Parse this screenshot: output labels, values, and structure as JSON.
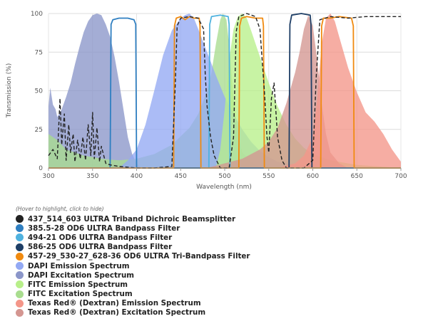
{
  "chart_data": {
    "type": "area",
    "xlabel": "Wavelength (nm)",
    "ylabel": "Transmission (%)",
    "xlim": [
      300,
      700
    ],
    "ylim": [
      0,
      100
    ],
    "x_ticks": [
      300,
      350,
      400,
      450,
      500,
      550,
      600,
      650,
      700
    ],
    "y_ticks": [
      0,
      25,
      50,
      75,
      100
    ],
    "grid": true,
    "legend_position": "bottom",
    "legend_hint": "(Hover to highlight, click to hide)",
    "series": [
      {
        "name": "DAPI Excitation Spectrum",
        "kind": "fill",
        "color": "#8b96c9",
        "points": [
          [
            300,
            40
          ],
          [
            302,
            52
          ],
          [
            305,
            41
          ],
          [
            308,
            38
          ],
          [
            310,
            33
          ],
          [
            315,
            38
          ],
          [
            320,
            46
          ],
          [
            325,
            55
          ],
          [
            330,
            67
          ],
          [
            335,
            78
          ],
          [
            340,
            88
          ],
          [
            345,
            95
          ],
          [
            350,
            99
          ],
          [
            355,
            100
          ],
          [
            360,
            99
          ],
          [
            365,
            93
          ],
          [
            370,
            85
          ],
          [
            375,
            72
          ],
          [
            380,
            56
          ],
          [
            385,
            38
          ],
          [
            390,
            20
          ],
          [
            395,
            9
          ],
          [
            400,
            3
          ],
          [
            405,
            0
          ]
        ]
      },
      {
        "name": "FITC Excitation Spectrum",
        "kind": "fill",
        "color": "#a9dd8f",
        "points": [
          [
            300,
            22
          ],
          [
            310,
            18
          ],
          [
            320,
            12
          ],
          [
            340,
            8
          ],
          [
            360,
            6
          ],
          [
            380,
            5
          ],
          [
            400,
            6
          ],
          [
            420,
            9
          ],
          [
            440,
            15
          ],
          [
            460,
            26
          ],
          [
            470,
            35
          ],
          [
            480,
            50
          ],
          [
            485,
            62
          ],
          [
            490,
            80
          ],
          [
            495,
            96
          ],
          [
            498,
            100
          ],
          [
            502,
            96
          ],
          [
            505,
            80
          ],
          [
            510,
            45
          ],
          [
            515,
            22
          ],
          [
            520,
            10
          ],
          [
            530,
            4
          ],
          [
            540,
            0
          ]
        ]
      },
      {
        "name": "DAPI Emission Spectrum",
        "kind": "fill",
        "color": "#93a9f4",
        "points": [
          [
            380,
            0
          ],
          [
            390,
            5
          ],
          [
            400,
            12
          ],
          [
            410,
            28
          ],
          [
            420,
            50
          ],
          [
            430,
            73
          ],
          [
            440,
            89
          ],
          [
            450,
            97
          ],
          [
            455,
            99
          ],
          [
            460,
            100
          ],
          [
            465,
            97
          ],
          [
            470,
            90
          ],
          [
            480,
            75
          ],
          [
            490,
            60
          ],
          [
            500,
            46
          ],
          [
            510,
            35
          ],
          [
            520,
            25
          ],
          [
            530,
            17
          ],
          [
            540,
            11
          ],
          [
            550,
            7
          ],
          [
            560,
            4
          ],
          [
            580,
            2
          ],
          [
            600,
            1
          ],
          [
            620,
            0
          ]
        ]
      },
      {
        "name": "FITC Emission Spectrum",
        "kind": "fill",
        "color": "#b8ef8a",
        "points": [
          [
            490,
            0
          ],
          [
            495,
            12
          ],
          [
            500,
            38
          ],
          [
            505,
            70
          ],
          [
            510,
            90
          ],
          [
            515,
            98
          ],
          [
            520,
            100
          ],
          [
            525,
            97
          ],
          [
            530,
            89
          ],
          [
            540,
            72
          ],
          [
            550,
            55
          ],
          [
            560,
            40
          ],
          [
            570,
            28
          ],
          [
            580,
            19
          ],
          [
            590,
            13
          ],
          [
            600,
            9
          ],
          [
            620,
            5
          ],
          [
            650,
            2
          ],
          [
            700,
            0
          ]
        ]
      },
      {
        "name": "Texas Red® (Dextran) Excitation Spectrum",
        "kind": "fill",
        "color": "#d49691",
        "points": [
          [
            480,
            0
          ],
          [
            500,
            3
          ],
          [
            520,
            6
          ],
          [
            540,
            12
          ],
          [
            550,
            17
          ],
          [
            560,
            26
          ],
          [
            570,
            42
          ],
          [
            580,
            62
          ],
          [
            585,
            75
          ],
          [
            590,
            90
          ],
          [
            595,
            99
          ],
          [
            600,
            92
          ],
          [
            605,
            70
          ],
          [
            610,
            42
          ],
          [
            615,
            22
          ],
          [
            620,
            10
          ],
          [
            630,
            3
          ],
          [
            640,
            0
          ]
        ]
      },
      {
        "name": "Texas Red® (Dextran) Emission Spectrum",
        "kind": "fill",
        "color": "#f49689",
        "points": [
          [
            560,
            0
          ],
          [
            580,
            3
          ],
          [
            590,
            8
          ],
          [
            600,
            20
          ],
          [
            605,
            45
          ],
          [
            610,
            80
          ],
          [
            615,
            97
          ],
          [
            620,
            100
          ],
          [
            625,
            95
          ],
          [
            630,
            85
          ],
          [
            640,
            65
          ],
          [
            650,
            49
          ],
          [
            660,
            36
          ],
          [
            670,
            30
          ],
          [
            680,
            22
          ],
          [
            690,
            12
          ],
          [
            700,
            4
          ]
        ]
      },
      {
        "name": "385.5-28 OD6 ULTRA Bandpass Filter",
        "kind": "line",
        "color": "#2f7fc1",
        "dash": false,
        "points": [
          [
            300,
            0
          ],
          [
            370,
            0
          ],
          [
            371,
            93
          ],
          [
            373,
            96
          ],
          [
            380,
            97
          ],
          [
            390,
            97
          ],
          [
            397,
            96
          ],
          [
            399,
            93
          ],
          [
            400,
            0
          ],
          [
            700,
            0
          ]
        ]
      },
      {
        "name": "494-21 OD6 ULTRA Bandpass Filter",
        "kind": "line",
        "color": "#4fb2df",
        "dash": false,
        "points": [
          [
            300,
            0
          ],
          [
            482,
            0
          ],
          [
            483,
            93
          ],
          [
            485,
            98
          ],
          [
            495,
            99
          ],
          [
            504,
            98
          ],
          [
            505,
            93
          ],
          [
            506,
            0
          ],
          [
            700,
            0
          ]
        ]
      },
      {
        "name": "586-25 OD6 ULTRA Bandpass Filter",
        "kind": "line",
        "color": "#1f3f66",
        "dash": false,
        "points": [
          [
            300,
            0
          ],
          [
            573,
            0
          ],
          [
            574,
            93
          ],
          [
            576,
            99
          ],
          [
            587,
            100
          ],
          [
            597,
            99
          ],
          [
            598,
            93
          ],
          [
            599,
            0
          ],
          [
            700,
            0
          ]
        ]
      },
      {
        "name": "457-29_530-27_628-36 OD6 ULTRA Tri-Bandpass Filter",
        "kind": "line",
        "color": "#f08a10",
        "dash": false,
        "points": [
          [
            300,
            0
          ],
          [
            442,
            0
          ],
          [
            443,
            92
          ],
          [
            445,
            97
          ],
          [
            450,
            98
          ],
          [
            455,
            96
          ],
          [
            460,
            98
          ],
          [
            465,
            97
          ],
          [
            471,
            97
          ],
          [
            472,
            92
          ],
          [
            473,
            0
          ],
          [
            516,
            0
          ],
          [
            517,
            92
          ],
          [
            519,
            97
          ],
          [
            525,
            98
          ],
          [
            535,
            97
          ],
          [
            543,
            97
          ],
          [
            544,
            92
          ],
          [
            545,
            0
          ],
          [
            609,
            0
          ],
          [
            610,
            92
          ],
          [
            612,
            97
          ],
          [
            620,
            97
          ],
          [
            630,
            98
          ],
          [
            644,
            97
          ],
          [
            646,
            92
          ],
          [
            647,
            0
          ],
          [
            700,
            0
          ]
        ]
      },
      {
        "name": "437_514_603 ULTRA Triband Dichroic Beamsplitter",
        "kind": "line",
        "color": "#222222",
        "dash": true,
        "points": [
          [
            300,
            8
          ],
          [
            305,
            12
          ],
          [
            310,
            6
          ],
          [
            313,
            45
          ],
          [
            315,
            15
          ],
          [
            318,
            35
          ],
          [
            320,
            5
          ],
          [
            323,
            28
          ],
          [
            325,
            10
          ],
          [
            328,
            22
          ],
          [
            330,
            4
          ],
          [
            333,
            18
          ],
          [
            336,
            6
          ],
          [
            339,
            20
          ],
          [
            342,
            5
          ],
          [
            345,
            28
          ],
          [
            348,
            8
          ],
          [
            350,
            36
          ],
          [
            352,
            6
          ],
          [
            355,
            26
          ],
          [
            358,
            4
          ],
          [
            360,
            14
          ],
          [
            365,
            3
          ],
          [
            370,
            2
          ],
          [
            380,
            1
          ],
          [
            400,
            0
          ],
          [
            420,
            0
          ],
          [
            440,
            1
          ],
          [
            444,
            55
          ],
          [
            446,
            92
          ],
          [
            450,
            97
          ],
          [
            460,
            98
          ],
          [
            470,
            97
          ],
          [
            476,
            90
          ],
          [
            478,
            60
          ],
          [
            480,
            40
          ],
          [
            484,
            20
          ],
          [
            488,
            8
          ],
          [
            495,
            0
          ],
          [
            505,
            0
          ],
          [
            510,
            20
          ],
          [
            513,
            88
          ],
          [
            516,
            98
          ],
          [
            525,
            100
          ],
          [
            535,
            98
          ],
          [
            540,
            90
          ],
          [
            545,
            50
          ],
          [
            548,
            20
          ],
          [
            550,
            10
          ],
          [
            553,
            45
          ],
          [
            556,
            55
          ],
          [
            560,
            20
          ],
          [
            565,
            5
          ],
          [
            570,
            0
          ],
          [
            590,
            0
          ],
          [
            600,
            5
          ],
          [
            604,
            60
          ],
          [
            608,
            96
          ],
          [
            620,
            98
          ],
          [
            640,
            97
          ],
          [
            660,
            98
          ],
          [
            680,
            98
          ],
          [
            700,
            98
          ]
        ]
      }
    ],
    "legend": [
      {
        "label": "437_514_603 ULTRA Triband Dichroic Beamsplitter",
        "color": "#222222"
      },
      {
        "label": "385.5-28 OD6 ULTRA Bandpass Filter",
        "color": "#2f7fc1"
      },
      {
        "label": "494-21 OD6 ULTRA Bandpass Filter",
        "color": "#4fb2df"
      },
      {
        "label": "586-25 OD6 ULTRA Bandpass Filter",
        "color": "#1f3f66"
      },
      {
        "label": "457-29_530-27_628-36 OD6 ULTRA Tri-Bandpass Filter",
        "color": "#f08a10"
      },
      {
        "label": "DAPI Emission Spectrum",
        "color": "#93a9f4"
      },
      {
        "label": "DAPI Excitation Spectrum",
        "color": "#8b96c9"
      },
      {
        "label": "FITC Emission Spectrum",
        "color": "#b8ef8a"
      },
      {
        "label": "FITC Excitation Spectrum",
        "color": "#a9dd8f"
      },
      {
        "label": "Texas Red® (Dextran) Emission Spectrum",
        "color": "#f49689"
      },
      {
        "label": "Texas Red® (Dextran) Excitation Spectrum",
        "color": "#d49691"
      }
    ]
  }
}
